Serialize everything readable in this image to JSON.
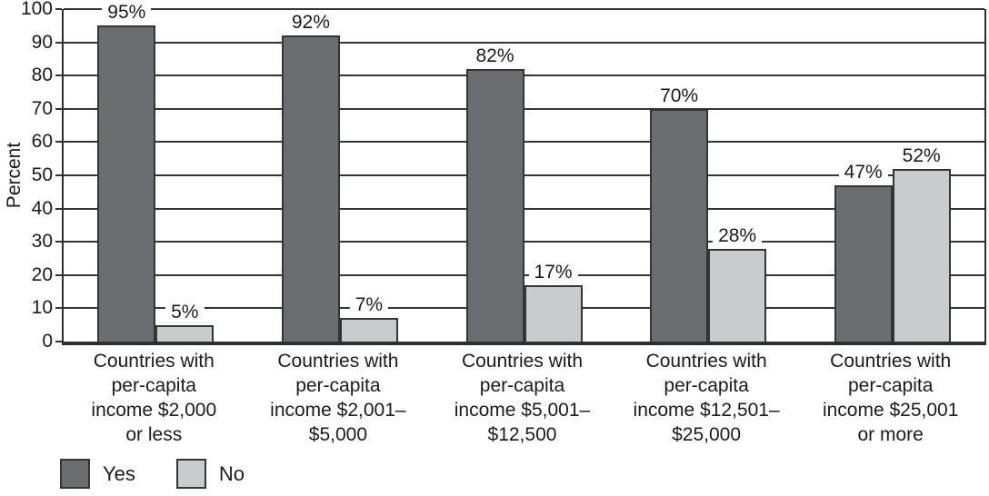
{
  "chart_data": {
    "type": "bar",
    "title": "",
    "xlabel": "",
    "ylabel": "Percent",
    "ylim": [
      0,
      100
    ],
    "yticks": [
      0,
      10,
      20,
      30,
      40,
      50,
      60,
      70,
      80,
      90,
      100
    ],
    "grid": "horizontal",
    "legend_position": "bottom-left",
    "value_label_suffix": "%",
    "categories": [
      "Countries with\nper-capita\nincome $2,000\nor less",
      "Countries with\nper-capita\nincome $2,001–\n$5,000",
      "Countries with\nper-capita\nincome $5,001–\n$12,500",
      "Countries with\nper-capita\nincome $12,501–\n$25,000",
      "Countries with\nper-capita\nincome $25,001\nor more"
    ],
    "series": [
      {
        "name": "Yes",
        "values": [
          95,
          92,
          82,
          70,
          47
        ],
        "value_labels": [
          "95%",
          "92%",
          "82%",
          "70%",
          "47%"
        ],
        "color": "#6b6d70",
        "border_color": "#343537"
      },
      {
        "name": "No",
        "values": [
          5,
          7,
          17,
          28,
          52
        ],
        "value_labels": [
          "5%",
          "7%",
          "17%",
          "28%",
          "52%"
        ],
        "color": "#c9cbcd",
        "border_color": "#343537"
      }
    ]
  },
  "colors": {
    "axis": "#2e2f31",
    "gridline": "#343537",
    "text": "#1b1b1d",
    "background": "#ffffff"
  }
}
